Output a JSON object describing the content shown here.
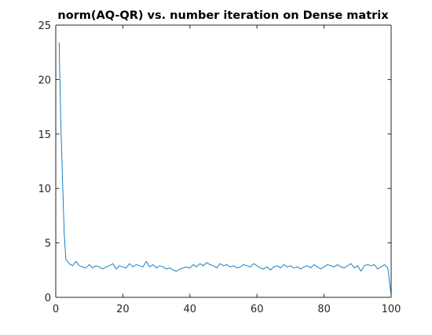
{
  "chart_data": {
    "type": "line",
    "title": "norm(AQ-QR) vs. number iteration on Dense matrix",
    "xlabel": "",
    "ylabel": "",
    "xlim": [
      0,
      100
    ],
    "ylim": [
      0,
      25
    ],
    "x_ticks": [
      0,
      20,
      40,
      60,
      80,
      100
    ],
    "y_ticks": [
      0,
      5,
      10,
      15,
      20,
      25
    ],
    "x_tick_labels": [
      "0",
      "20",
      "40",
      "60",
      "80",
      "100"
    ],
    "y_tick_labels": [
      "0",
      "5",
      "10",
      "15",
      "20",
      "25"
    ],
    "grid": false,
    "box": true,
    "line_color": "#0072BD",
    "axis_color": "#262626",
    "series": [
      {
        "x": [
          1,
          1.5,
          2,
          2.5,
          3,
          4,
          5,
          6,
          7,
          8,
          9,
          10,
          11,
          12,
          13,
          14,
          15,
          16,
          17,
          18,
          19,
          20,
          21,
          22,
          23,
          24,
          25,
          26,
          27,
          28,
          29,
          30,
          31,
          32,
          33,
          34,
          35,
          36,
          37,
          38,
          39,
          40,
          41,
          42,
          43,
          44,
          45,
          46,
          47,
          48,
          49,
          50,
          51,
          52,
          53,
          54,
          55,
          56,
          57,
          58,
          59,
          60,
          61,
          62,
          63,
          64,
          65,
          66,
          67,
          68,
          69,
          70,
          71,
          72,
          73,
          74,
          75,
          76,
          77,
          78,
          79,
          80,
          81,
          82,
          83,
          84,
          85,
          86,
          87,
          88,
          89,
          90,
          91,
          92,
          93,
          94,
          95,
          96,
          97,
          98,
          99,
          100
        ],
        "y": [
          23.4,
          16.0,
          11.0,
          6.0,
          3.5,
          3.1,
          2.9,
          3.3,
          2.9,
          2.8,
          2.7,
          3.0,
          2.7,
          2.9,
          2.8,
          2.6,
          2.8,
          2.9,
          3.1,
          2.6,
          2.9,
          2.8,
          2.7,
          3.1,
          2.8,
          3.0,
          2.9,
          2.8,
          3.3,
          2.8,
          3.0,
          2.7,
          2.9,
          2.8,
          2.6,
          2.7,
          2.5,
          2.4,
          2.6,
          2.7,
          2.8,
          2.7,
          3.0,
          2.8,
          3.1,
          2.9,
          3.2,
          3.0,
          2.9,
          2.7,
          3.1,
          2.9,
          3.0,
          2.8,
          2.9,
          2.7,
          2.8,
          3.0,
          2.9,
          2.8,
          3.1,
          2.9,
          2.7,
          2.6,
          2.8,
          2.5,
          2.8,
          2.9,
          2.7,
          3.0,
          2.8,
          2.9,
          2.7,
          2.8,
          2.6,
          2.8,
          2.9,
          2.7,
          3.0,
          2.8,
          2.6,
          2.8,
          3.0,
          2.9,
          2.8,
          3.0,
          2.8,
          2.7,
          2.9,
          3.1,
          2.7,
          2.9,
          2.4,
          2.9,
          3.0,
          2.9,
          3.0,
          2.6,
          2.8,
          3.0,
          2.7,
          0.2
        ]
      }
    ]
  }
}
